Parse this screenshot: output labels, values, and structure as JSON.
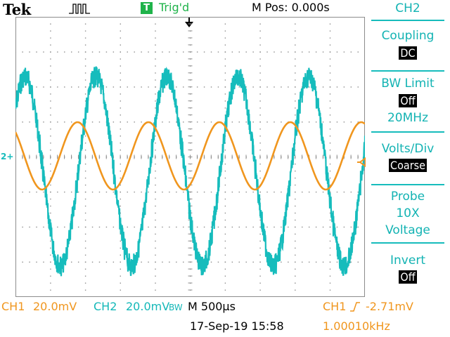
{
  "header": {
    "brand": "Tek",
    "acquisition_icon": "pulse-icon",
    "trigger_badge": "T",
    "trigger_status": "Trig'd",
    "horizontal_position": "M Pos: 0.000s"
  },
  "screen": {
    "reference_marker": "2+",
    "grid_divisions": {
      "horizontal": 10,
      "vertical": 8
    },
    "channel_colors": {
      "ch1": "#f0961e",
      "ch2": "#16bcbc"
    }
  },
  "menu": {
    "title": "CH2",
    "coupling": {
      "label": "Coupling",
      "value": "DC"
    },
    "bw_limit": {
      "label": "BW Limit",
      "value": "Off",
      "note": "20MHz"
    },
    "volts_div": {
      "label": "Volts/Div",
      "value": "Coarse"
    },
    "probe": {
      "label": "Probe",
      "line2": "10X",
      "line3": "Voltage"
    },
    "invert": {
      "label": "Invert",
      "value": "Off"
    }
  },
  "footer": {
    "ch1_label": "CH1",
    "ch1_scale": "20.0mV",
    "ch2_label": "CH2",
    "ch2_scale": "20.0mV",
    "bw_badge": "BW",
    "timebase": "M 500µs",
    "trigger_source": "CH1",
    "trigger_level": "-2.71mV",
    "datetime": "17-Sep-19 15:58",
    "frequency": "1.00010kHz"
  }
}
